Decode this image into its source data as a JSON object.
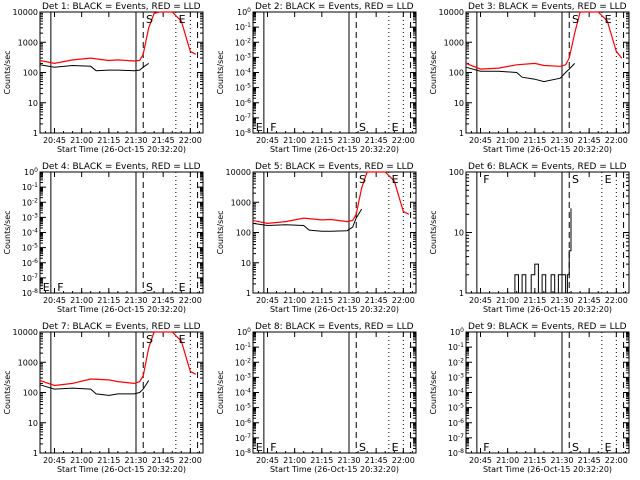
{
  "panel_title_suffix": ": BLACK = Events, RED = LLD",
  "xlabel": "Start Time (26-Oct-15 20:32:20)",
  "ylabel": "Counts/sec",
  "x_ticks": [
    "20:45",
    "21:00",
    "21:15",
    "21:30",
    "21:45",
    "22:00"
  ],
  "y_ticks_counts": [
    "1",
    "10",
    "100",
    "1000",
    "10000"
  ],
  "y_ticks_empty": [
    "10^0",
    "10^-1",
    "10^-2",
    "10^-3",
    "10^-4",
    "10^-5",
    "10^-6",
    "10^-7",
    "10^-8"
  ],
  "y_ticks_det6": [
    "1",
    "10",
    "100"
  ],
  "marker_letters": [
    "E",
    "F",
    "S",
    "E"
  ],
  "colors": {
    "events": "#000000",
    "lld": "#ff0000"
  },
  "chart_data": [
    {
      "type": "line",
      "title": "Det 1",
      "xlabel": "Start Time (26-Oct-15 20:32:20)",
      "ylabel": "Counts/sec",
      "x_range": [
        "20:37",
        "22:07"
      ],
      "ylim": [
        1,
        10000
      ],
      "yscale": "log",
      "vlines": {
        "solid": [
          "20:43",
          "21:30"
        ],
        "dashed": [
          "21:34",
          "22:04"
        ],
        "dotted": [
          "21:52",
          "22:00"
        ]
      },
      "markers": [
        {
          "label": "S",
          "x": "21:35",
          "y": 10000
        },
        {
          "label": "E",
          "x": "21:53",
          "y": 10000
        }
      ],
      "series": [
        {
          "name": "Events",
          "x": [
            "20:37",
            "20:45",
            "20:55",
            "21:05",
            "21:08",
            "21:15",
            "21:20",
            "21:29",
            "21:32",
            "21:34",
            "21:37"
          ],
          "y": [
            180,
            150,
            170,
            160,
            115,
            120,
            120,
            115,
            120,
            150,
            200
          ]
        },
        {
          "name": "LLD",
          "x": [
            "20:37",
            "20:45",
            "20:55",
            "21:05",
            "21:15",
            "21:20",
            "21:29",
            "21:32",
            "21:34",
            "21:37",
            "21:40",
            "21:43",
            "21:50",
            "21:55",
            "22:00",
            "22:03"
          ],
          "y": [
            250,
            200,
            260,
            300,
            250,
            260,
            240,
            250,
            400,
            3000,
            9000,
            10000,
            10000,
            5000,
            500,
            400
          ]
        }
      ]
    },
    {
      "type": "line",
      "title": "Det 2",
      "xlabel": "Start Time (26-Oct-15 20:32:20)",
      "ylabel": "Counts/sec",
      "x_range": [
        "20:37",
        "22:07"
      ],
      "ylim": [
        1e-08,
        1
      ],
      "yscale": "log",
      "vlines": {
        "solid": [
          "20:43",
          "21:30"
        ],
        "dashed": [
          "21:34",
          "22:04"
        ],
        "dotted": [
          "21:52",
          "22:00"
        ]
      },
      "markers": [
        {
          "label": "E",
          "x": "20:38",
          "y": 1e-08
        },
        {
          "label": "F",
          "x": "20:46",
          "y": 1e-08
        },
        {
          "label": "S",
          "x": "21:35",
          "y": 1e-08
        },
        {
          "label": "E",
          "x": "21:53",
          "y": 1e-08
        }
      ],
      "series": []
    },
    {
      "type": "line",
      "title": "Det 3",
      "xlabel": "Start Time (26-Oct-15 20:32:20)",
      "ylabel": "Counts/sec",
      "x_range": [
        "20:37",
        "22:07"
      ],
      "ylim": [
        1,
        10000
      ],
      "yscale": "log",
      "vlines": {
        "solid": [
          "20:43",
          "21:30"
        ],
        "dashed": [
          "21:34",
          "22:04"
        ],
        "dotted": [
          "21:52",
          "22:00"
        ]
      },
      "markers": [
        {
          "label": "S",
          "x": "21:35",
          "y": 10000
        },
        {
          "label": "E",
          "x": "21:53",
          "y": 10000
        }
      ],
      "series": [
        {
          "name": "Events",
          "x": [
            "20:37",
            "20:45",
            "20:55",
            "21:05",
            "21:08",
            "21:15",
            "21:20",
            "21:29",
            "21:32",
            "21:34",
            "21:37"
          ],
          "y": [
            150,
            110,
            110,
            100,
            70,
            60,
            50,
            65,
            100,
            130,
            200
          ]
        },
        {
          "name": "LLD",
          "x": [
            "20:37",
            "20:45",
            "20:55",
            "21:05",
            "21:15",
            "21:20",
            "21:29",
            "21:32",
            "21:34",
            "21:37",
            "21:40",
            "21:43",
            "21:50",
            "21:55",
            "22:00",
            "22:03"
          ],
          "y": [
            200,
            130,
            140,
            180,
            200,
            170,
            160,
            180,
            300,
            2000,
            10000,
            10000,
            10000,
            5000,
            500,
            300
          ]
        }
      ]
    },
    {
      "type": "line",
      "title": "Det 4",
      "xlabel": "Start Time (26-Oct-15 20:32:20)",
      "ylabel": "Counts/sec",
      "x_range": [
        "20:37",
        "22:07"
      ],
      "ylim": [
        1e-08,
        1
      ],
      "yscale": "log",
      "vlines": {
        "solid": [
          "20:43",
          "21:30"
        ],
        "dashed": [
          "21:34",
          "22:04"
        ],
        "dotted": [
          "21:52",
          "22:00"
        ]
      },
      "markers": [
        {
          "label": "E",
          "x": "20:38",
          "y": 1e-08
        },
        {
          "label": "F",
          "x": "20:46",
          "y": 1e-08
        },
        {
          "label": "S",
          "x": "21:35",
          "y": 1e-08
        },
        {
          "label": "E",
          "x": "21:53",
          "y": 1e-08
        }
      ],
      "series": []
    },
    {
      "type": "line",
      "title": "Det 5",
      "xlabel": "Start Time (26-Oct-15 20:32:20)",
      "ylabel": "Counts/sec",
      "x_range": [
        "20:37",
        "22:07"
      ],
      "ylim": [
        1,
        10000
      ],
      "yscale": "log",
      "vlines": {
        "solid": [
          "20:43",
          "21:30"
        ],
        "dashed": [
          "21:34",
          "22:04"
        ],
        "dotted": [
          "21:52",
          "22:00"
        ]
      },
      "markers": [
        {
          "label": "S",
          "x": "21:35",
          "y": 10000
        },
        {
          "label": "E",
          "x": "21:53",
          "y": 10000
        }
      ],
      "series": [
        {
          "name": "Events",
          "x": [
            "20:37",
            "20:45",
            "20:55",
            "21:05",
            "21:08",
            "21:15",
            "21:20",
            "21:29",
            "21:32",
            "21:34",
            "21:37"
          ],
          "y": [
            200,
            170,
            180,
            170,
            120,
            110,
            110,
            115,
            150,
            300,
            600
          ]
        },
        {
          "name": "LLD",
          "x": [
            "20:37",
            "20:45",
            "20:55",
            "21:05",
            "21:15",
            "21:20",
            "21:29",
            "21:32",
            "21:34",
            "21:37",
            "21:40",
            "21:43",
            "21:50",
            "21:55",
            "22:00",
            "22:03"
          ],
          "y": [
            250,
            200,
            230,
            300,
            260,
            270,
            230,
            250,
            400,
            3000,
            10000,
            10000,
            10000,
            5000,
            500,
            400
          ]
        }
      ]
    },
    {
      "type": "line",
      "title": "Det 6",
      "xlabel": "Start Time (26-Oct-15 20:32:20)",
      "ylabel": "Counts/sec",
      "x_range": [
        "20:37",
        "22:07"
      ],
      "ylim": [
        1,
        100
      ],
      "yscale": "log",
      "vlines": {
        "solid": [
          "20:43",
          "21:30"
        ],
        "dashed": [
          "21:34",
          "22:04"
        ],
        "dotted": [
          "21:52",
          "22:00"
        ]
      },
      "markers": [
        {
          "label": "F",
          "x": "20:46",
          "y": 100
        },
        {
          "label": "S",
          "x": "21:35",
          "y": 100
        },
        {
          "label": "E",
          "x": "21:53",
          "y": 100
        }
      ],
      "series": [
        {
          "name": "Events",
          "x": [
            "21:03",
            "21:04",
            "21:06",
            "21:08",
            "21:10",
            "21:13",
            "21:15",
            "21:17",
            "21:19",
            "21:21",
            "21:24",
            "21:26",
            "21:28",
            "21:30",
            "21:32",
            "21:33",
            "21:34",
            "21:35"
          ],
          "y": [
            1,
            2,
            1,
            2,
            1,
            2,
            3,
            1,
            2,
            1,
            2,
            1,
            2,
            2,
            1,
            2,
            5,
            25
          ]
        }
      ]
    },
    {
      "type": "line",
      "title": "Det 7",
      "xlabel": "Start Time (26-Oct-15 20:32:20)",
      "ylabel": "Counts/sec",
      "x_range": [
        "20:37",
        "22:07"
      ],
      "ylim": [
        1,
        10000
      ],
      "yscale": "log",
      "vlines": {
        "solid": [
          "20:43",
          "21:30"
        ],
        "dashed": [
          "21:34",
          "22:04"
        ],
        "dotted": [
          "21:52",
          "22:00"
        ]
      },
      "markers": [
        {
          "label": "S",
          "x": "21:35",
          "y": 10000
        },
        {
          "label": "E",
          "x": "21:53",
          "y": 10000
        }
      ],
      "series": [
        {
          "name": "Events",
          "x": [
            "20:37",
            "20:45",
            "20:55",
            "21:05",
            "21:08",
            "21:15",
            "21:20",
            "21:29",
            "21:32",
            "21:34",
            "21:37"
          ],
          "y": [
            180,
            130,
            140,
            130,
            90,
            80,
            90,
            90,
            100,
            130,
            250
          ]
        },
        {
          "name": "LLD",
          "x": [
            "20:37",
            "20:45",
            "20:55",
            "21:05",
            "21:15",
            "21:20",
            "21:29",
            "21:32",
            "21:34",
            "21:37",
            "21:40",
            "21:43",
            "21:50",
            "21:55",
            "22:00",
            "22:03"
          ],
          "y": [
            250,
            170,
            200,
            280,
            260,
            230,
            200,
            230,
            350,
            3000,
            10000,
            10000,
            10000,
            5000,
            500,
            400
          ]
        }
      ]
    },
    {
      "type": "line",
      "title": "Det 8",
      "xlabel": "Start Time (26-Oct-15 20:32:20)",
      "ylabel": "Counts/sec",
      "x_range": [
        "20:37",
        "22:07"
      ],
      "ylim": [
        1e-08,
        1
      ],
      "yscale": "log",
      "vlines": {
        "solid": [
          "20:43",
          "21:30"
        ],
        "dashed": [
          "21:34",
          "22:04"
        ],
        "dotted": [
          "21:52",
          "22:00"
        ]
      },
      "markers": [
        {
          "label": "E",
          "x": "20:38",
          "y": 1e-08
        },
        {
          "label": "F",
          "x": "20:46",
          "y": 1e-08
        },
        {
          "label": "S",
          "x": "21:35",
          "y": 1e-08
        },
        {
          "label": "E",
          "x": "21:53",
          "y": 1e-08
        }
      ],
      "series": []
    },
    {
      "type": "line",
      "title": "Det 9",
      "xlabel": "Start Time (26-Oct-15 20:32:20)",
      "ylabel": "Counts/sec",
      "x_range": [
        "20:37",
        "22:07"
      ],
      "ylim": [
        1e-08,
        1
      ],
      "yscale": "log",
      "vlines": {
        "solid": [
          "20:43",
          "21:30"
        ],
        "dashed": [
          "21:34",
          "22:04"
        ],
        "dotted": [
          "21:52",
          "22:00"
        ]
      },
      "markers": [
        {
          "label": "F",
          "x": "20:46",
          "y": 1e-08
        },
        {
          "label": "S",
          "x": "21:35",
          "y": 1e-08
        },
        {
          "label": "E",
          "x": "21:53",
          "y": 1e-08
        }
      ],
      "series": []
    }
  ]
}
